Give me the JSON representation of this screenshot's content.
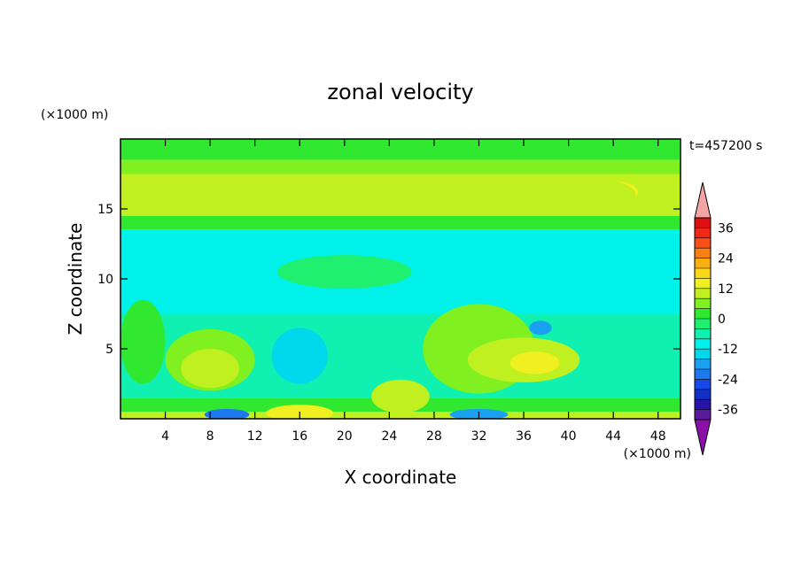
{
  "chart_data": {
    "type": "heatmap",
    "title": "zonal velocity",
    "time_label": "t=457200 s",
    "xlabel": "X coordinate",
    "ylabel": "Z coordinate",
    "x_unit": "(×1000 m)",
    "y_unit": "(×1000 m)",
    "xlim": [
      0,
      50
    ],
    "ylim": [
      0,
      20
    ],
    "x_ticks": [
      4,
      8,
      12,
      16,
      20,
      24,
      28,
      32,
      36,
      40,
      44,
      48
    ],
    "y_ticks": [
      5,
      10,
      15
    ],
    "colorbar": {
      "levels": [
        -40,
        -36,
        -32,
        -28,
        -24,
        -20,
        -16,
        -12,
        -8,
        -4,
        0,
        4,
        8,
        12,
        16,
        20,
        24,
        28,
        32,
        36,
        40
      ],
      "colors": [
        "#5a1a9e",
        "#2a14a8",
        "#1030c8",
        "#1848e8",
        "#1e78f0",
        "#1aa0f0",
        "#00d8ec",
        "#00f0ea",
        "#10f0b0",
        "#20f070",
        "#30e830",
        "#80f020",
        "#c0f020",
        "#f0f020",
        "#f8d818",
        "#f8b010",
        "#f88010",
        "#f85018",
        "#f02818",
        "#e01010"
      ],
      "under_color": "#8a10a8",
      "over_color": "#f4a4a4",
      "tick_labels": [
        "36",
        "24",
        "12",
        "0",
        "-12",
        "-24",
        "-36"
      ],
      "tick_values": [
        36,
        24,
        12,
        0,
        -12,
        -24,
        -36
      ]
    },
    "field_bands": [
      {
        "z": [
          18.5,
          20
        ],
        "u": 2
      },
      {
        "z": [
          17.5,
          18.5
        ],
        "u": 4
      },
      {
        "z": [
          14.5,
          17.5
        ],
        "u": 9
      },
      {
        "z": [
          13.5,
          14.5
        ],
        "u": 3
      },
      {
        "z": [
          7.5,
          13.5
        ],
        "u": -9
      },
      {
        "z": [
          1.5,
          7.5
        ],
        "u": -6
      },
      {
        "z": [
          0.5,
          1.5
        ],
        "u": 2
      },
      {
        "z": [
          0,
          0.5
        ],
        "u": 8
      }
    ],
    "field_features": [
      {
        "x": 44,
        "z": 16.2,
        "rx": 2.2,
        "rz": 0.8,
        "u": 14
      },
      {
        "x": 40,
        "z": 16.0,
        "rx": 6,
        "rz": 1.4,
        "u": 10
      },
      {
        "x": 8,
        "z": 4.2,
        "rx": 4,
        "rz": 2.2,
        "u": 4
      },
      {
        "x": 8,
        "z": 3.6,
        "rx": 2.6,
        "rz": 1.4,
        "u": 9
      },
      {
        "x": 32,
        "z": 5,
        "rx": 5,
        "rz": 3.2,
        "u": 6
      },
      {
        "x": 36,
        "z": 4.2,
        "rx": 5,
        "rz": 1.6,
        "u": 10
      },
      {
        "x": 37,
        "z": 4.0,
        "rx": 2.2,
        "rz": 0.8,
        "u": 14
      },
      {
        "x": 16,
        "z": 4.5,
        "rx": 2.5,
        "rz": 2,
        "u": -14
      },
      {
        "x": 20,
        "z": 10.5,
        "rx": 6,
        "rz": 1.2,
        "u": -4
      },
      {
        "x": 25,
        "z": 1.6,
        "rx": 2.6,
        "rz": 1.2,
        "u": 9
      },
      {
        "x": 16,
        "z": 0.4,
        "rx": 3,
        "rz": 0.6,
        "u": 14
      },
      {
        "x": 9.5,
        "z": 0.3,
        "rx": 2,
        "rz": 0.4,
        "u": -24
      },
      {
        "x": 32,
        "z": 0.3,
        "rx": 2.6,
        "rz": 0.4,
        "u": -18
      },
      {
        "x": 37.5,
        "z": 6.5,
        "rx": 1,
        "rz": 0.5,
        "u": -18
      },
      {
        "x": 2,
        "z": 5.5,
        "rx": 2,
        "rz": 3,
        "u": 0
      }
    ]
  }
}
